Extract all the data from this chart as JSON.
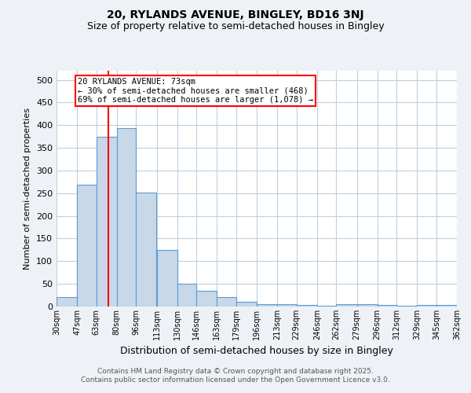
{
  "title1": "20, RYLANDS AVENUE, BINGLEY, BD16 3NJ",
  "title2": "Size of property relative to semi-detached houses in Bingley",
  "xlabel": "Distribution of semi-detached houses by size in Bingley",
  "ylabel": "Number of semi-detached properties",
  "bin_labels": [
    "30sqm",
    "47sqm",
    "63sqm",
    "80sqm",
    "96sqm",
    "113sqm",
    "130sqm",
    "146sqm",
    "163sqm",
    "179sqm",
    "196sqm",
    "213sqm",
    "229sqm",
    "246sqm",
    "262sqm",
    "279sqm",
    "296sqm",
    "312sqm",
    "329sqm",
    "345sqm",
    "362sqm"
  ],
  "bin_edges": [
    30,
    47,
    63,
    80,
    96,
    113,
    130,
    146,
    163,
    179,
    196,
    213,
    229,
    246,
    262,
    279,
    296,
    312,
    329,
    345,
    362
  ],
  "bar_heights": [
    20,
    268,
    375,
    393,
    252,
    125,
    50,
    35,
    20,
    10,
    6,
    5,
    3,
    2,
    6,
    5,
    3,
    2,
    4,
    3
  ],
  "bar_color": "#c8d8e8",
  "bar_edge_color": "#5b9bd5",
  "property_size": 73,
  "annotation_title": "20 RYLANDS AVENUE: 73sqm",
  "annotation_line1": "← 30% of semi-detached houses are smaller (468)",
  "annotation_line2": "69% of semi-detached houses are larger (1,078) →",
  "ylim": [
    0,
    520
  ],
  "yticks": [
    0,
    50,
    100,
    150,
    200,
    250,
    300,
    350,
    400,
    450,
    500
  ],
  "footer1": "Contains HM Land Registry data © Crown copyright and database right 2025.",
  "footer2": "Contains public sector information licensed under the Open Government Licence v3.0.",
  "bg_color": "#eef2f7",
  "plot_bg_color": "#ffffff",
  "grid_color": "#c0cfe0"
}
